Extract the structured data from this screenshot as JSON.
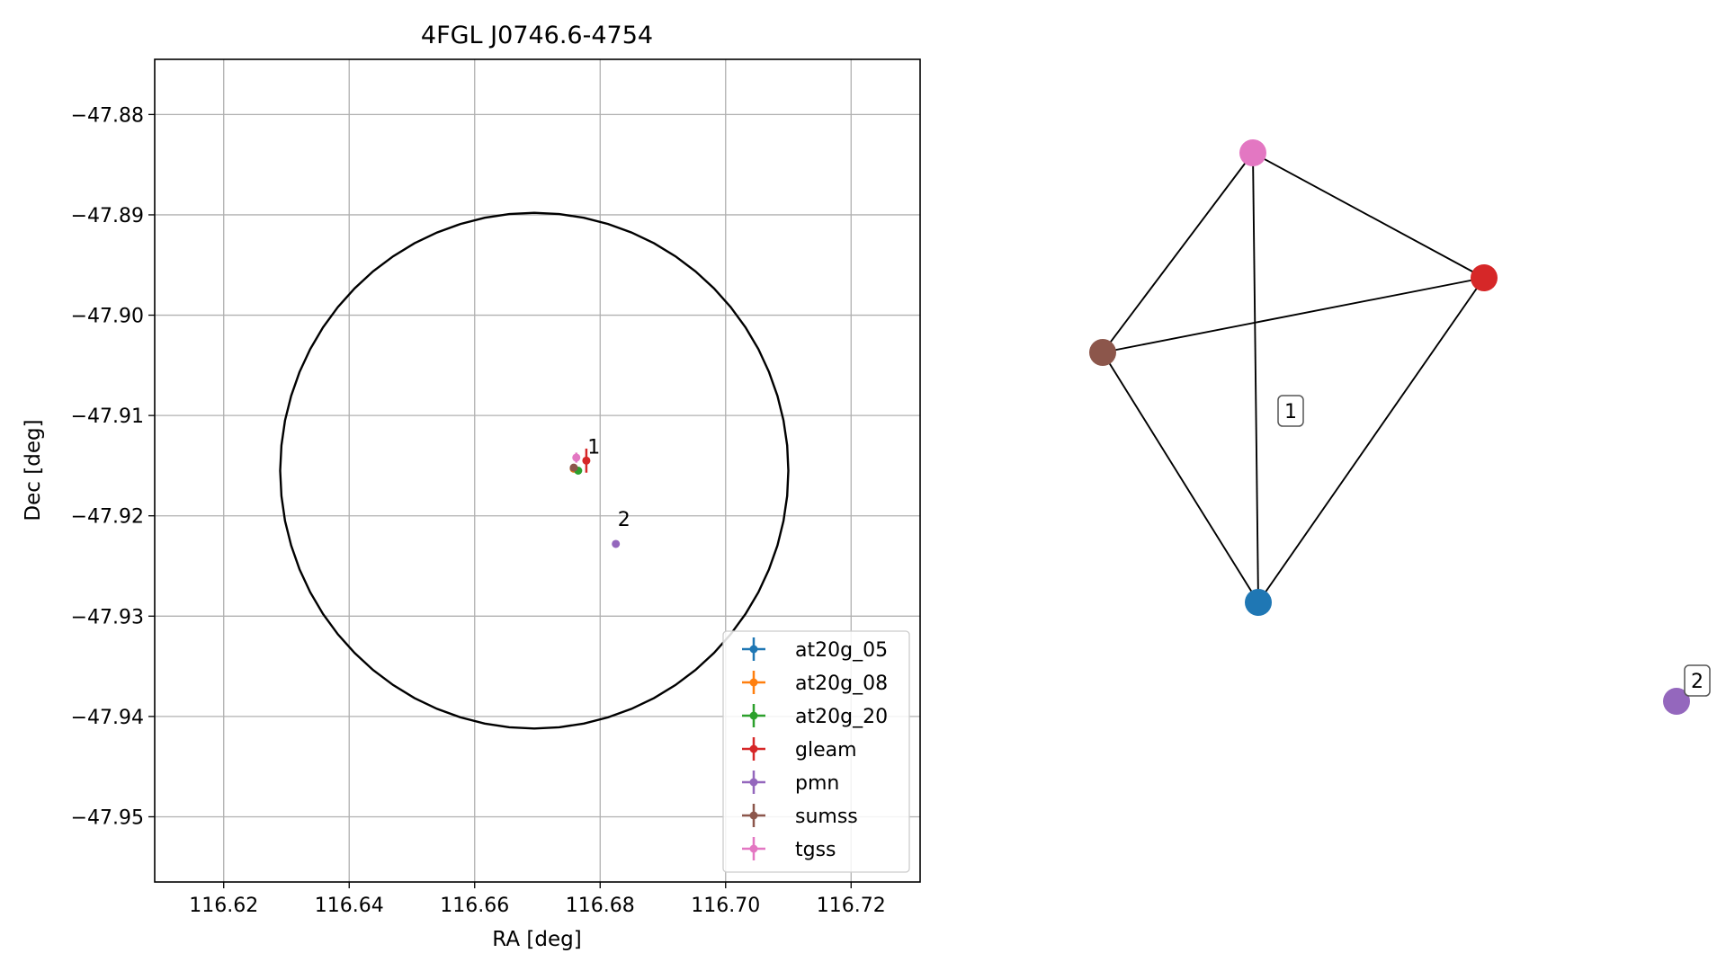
{
  "chart_data": [
    {
      "type": "scatter",
      "title": "4FGL J0746.6-4754",
      "xlabel": "RA [deg]",
      "ylabel": "Dec [deg]",
      "xlim": [
        116.609,
        116.731
      ],
      "ylim": [
        -47.9565,
        -47.8745
      ],
      "xticks": [
        116.62,
        116.64,
        116.66,
        116.68,
        116.7,
        116.72
      ],
      "xtick_labels": [
        "116.62",
        "116.64",
        "116.66",
        "116.68",
        "116.70",
        "116.72"
      ],
      "yticks": [
        -47.88,
        -47.89,
        -47.9,
        -47.91,
        -47.92,
        -47.93,
        -47.94,
        -47.95
      ],
      "ytick_labels": [
        "−47.88",
        "−47.89",
        "−47.90",
        "−47.91",
        "−47.92",
        "−47.93",
        "−47.94",
        "−47.95"
      ],
      "grid": true,
      "legend_position": "lower-right",
      "circle": {
        "center_ra": 116.6695,
        "center_dec": -47.9155,
        "radius_ra": 0.0405,
        "radius_dec": 0.0257
      },
      "series": [
        {
          "name": "at20g_05",
          "color": "#1f77b4",
          "points": [
            {
              "ra": 116.6758,
              "dec": -47.9153,
              "ra_err": 0.0003,
              "dec_err": 0.0002
            }
          ]
        },
        {
          "name": "at20g_08",
          "color": "#ff7f0e",
          "points": [
            {
              "ra": 116.6758,
              "dec": -47.9153,
              "ra_err": 0.0003,
              "dec_err": 0.0002
            }
          ]
        },
        {
          "name": "at20g_20",
          "color": "#2ca02c",
          "points": [
            {
              "ra": 116.6765,
              "dec": -47.9155,
              "ra_err": 0.0003,
              "dec_err": 0.0002
            }
          ]
        },
        {
          "name": "gleam",
          "color": "#d62728",
          "points": [
            {
              "ra": 116.6778,
              "dec": -47.9145,
              "ra_err": 0.0003,
              "dec_err": 0.0012
            }
          ]
        },
        {
          "name": "pmn",
          "color": "#9467bd",
          "points": [
            {
              "ra": 116.6825,
              "dec": -47.9228,
              "ra_err": 0.0002,
              "dec_err": 0.0002
            }
          ]
        },
        {
          "name": "sumss",
          "color": "#8c564b",
          "points": [
            {
              "ra": 116.6758,
              "dec": -47.9152,
              "ra_err": 0.0003,
              "dec_err": 0.0002
            }
          ]
        },
        {
          "name": "tgss",
          "color": "#e377c2",
          "points": [
            {
              "ra": 116.6762,
              "dec": -47.9142,
              "ra_err": 0.0004,
              "dec_err": 0.0005
            }
          ]
        }
      ],
      "annotations": [
        {
          "text": "1",
          "ra": 116.678,
          "dec": -47.9138
        },
        {
          "text": "2",
          "ra": 116.6828,
          "dec": -47.921
        }
      ]
    },
    {
      "type": "network",
      "nodes": [
        {
          "id": "tgss",
          "color": "#e377c2"
        },
        {
          "id": "gleam",
          "color": "#d62728"
        },
        {
          "id": "sumss",
          "color": "#8c564b"
        },
        {
          "id": "at20g",
          "color": "#1f77b4"
        },
        {
          "id": "pmn",
          "color": "#9467bd"
        }
      ],
      "edges": [
        [
          "tgss",
          "gleam"
        ],
        [
          "tgss",
          "sumss"
        ],
        [
          "tgss",
          "at20g"
        ],
        [
          "sumss",
          "gleam"
        ],
        [
          "sumss",
          "at20g"
        ],
        [
          "gleam",
          "at20g"
        ]
      ],
      "cluster_labels": [
        "1",
        "2"
      ]
    }
  ]
}
